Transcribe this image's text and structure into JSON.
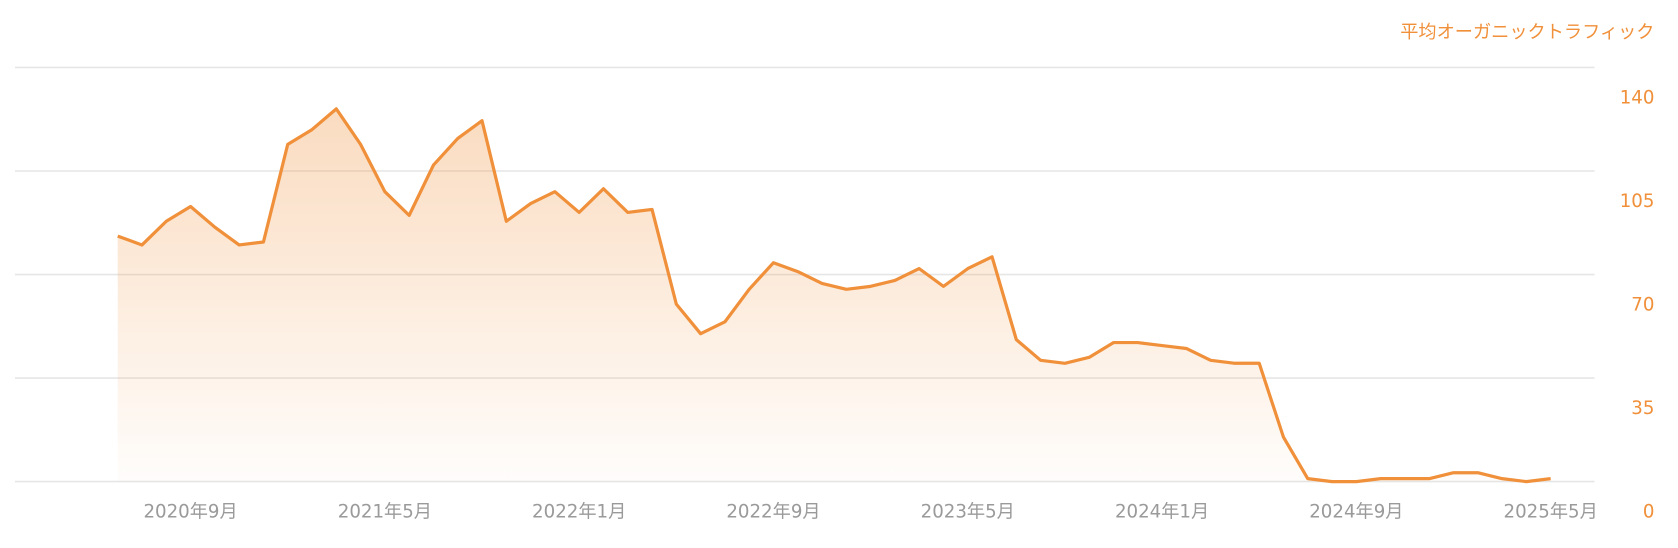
{
  "chart_data": {
    "type": "area",
    "title": "平均オーガニックトラフィック",
    "categories": [
      null,
      null,
      null,
      "2020年9月",
      null,
      null,
      null,
      null,
      null,
      null,
      null,
      "2021年5月",
      null,
      null,
      null,
      null,
      null,
      null,
      null,
      "2022年1月",
      null,
      null,
      null,
      null,
      null,
      null,
      null,
      "2022年9月",
      null,
      null,
      null,
      null,
      null,
      null,
      null,
      "2023年5月",
      null,
      null,
      null,
      null,
      null,
      null,
      null,
      "2024年1月",
      null,
      null,
      null,
      null,
      null,
      null,
      null,
      "2024年9月",
      null,
      null,
      null,
      null,
      null,
      null,
      null,
      "2025年5月"
    ],
    "series": [
      {
        "name": "平均オーガニックトラフィック",
        "color": "#f0903a",
        "axis": "y2",
        "values": [
          83,
          80,
          88,
          93,
          86,
          80,
          81,
          114,
          119,
          126,
          114,
          98,
          90,
          107,
          116,
          122,
          88,
          94,
          98,
          91,
          99,
          91,
          92,
          60,
          50,
          54,
          65,
          74,
          71,
          67,
          65,
          66,
          68,
          72,
          66,
          72,
          76,
          48,
          41,
          40,
          42,
          47,
          47,
          46,
          45,
          41,
          40,
          40,
          15,
          1,
          0,
          0,
          1,
          1,
          1,
          3,
          3,
          1,
          0,
          1
        ]
      }
    ],
    "y2lim": [
      0,
      140
    ],
    "y2ticks": [
      0,
      35,
      70,
      105,
      140
    ],
    "grid": true
  }
}
